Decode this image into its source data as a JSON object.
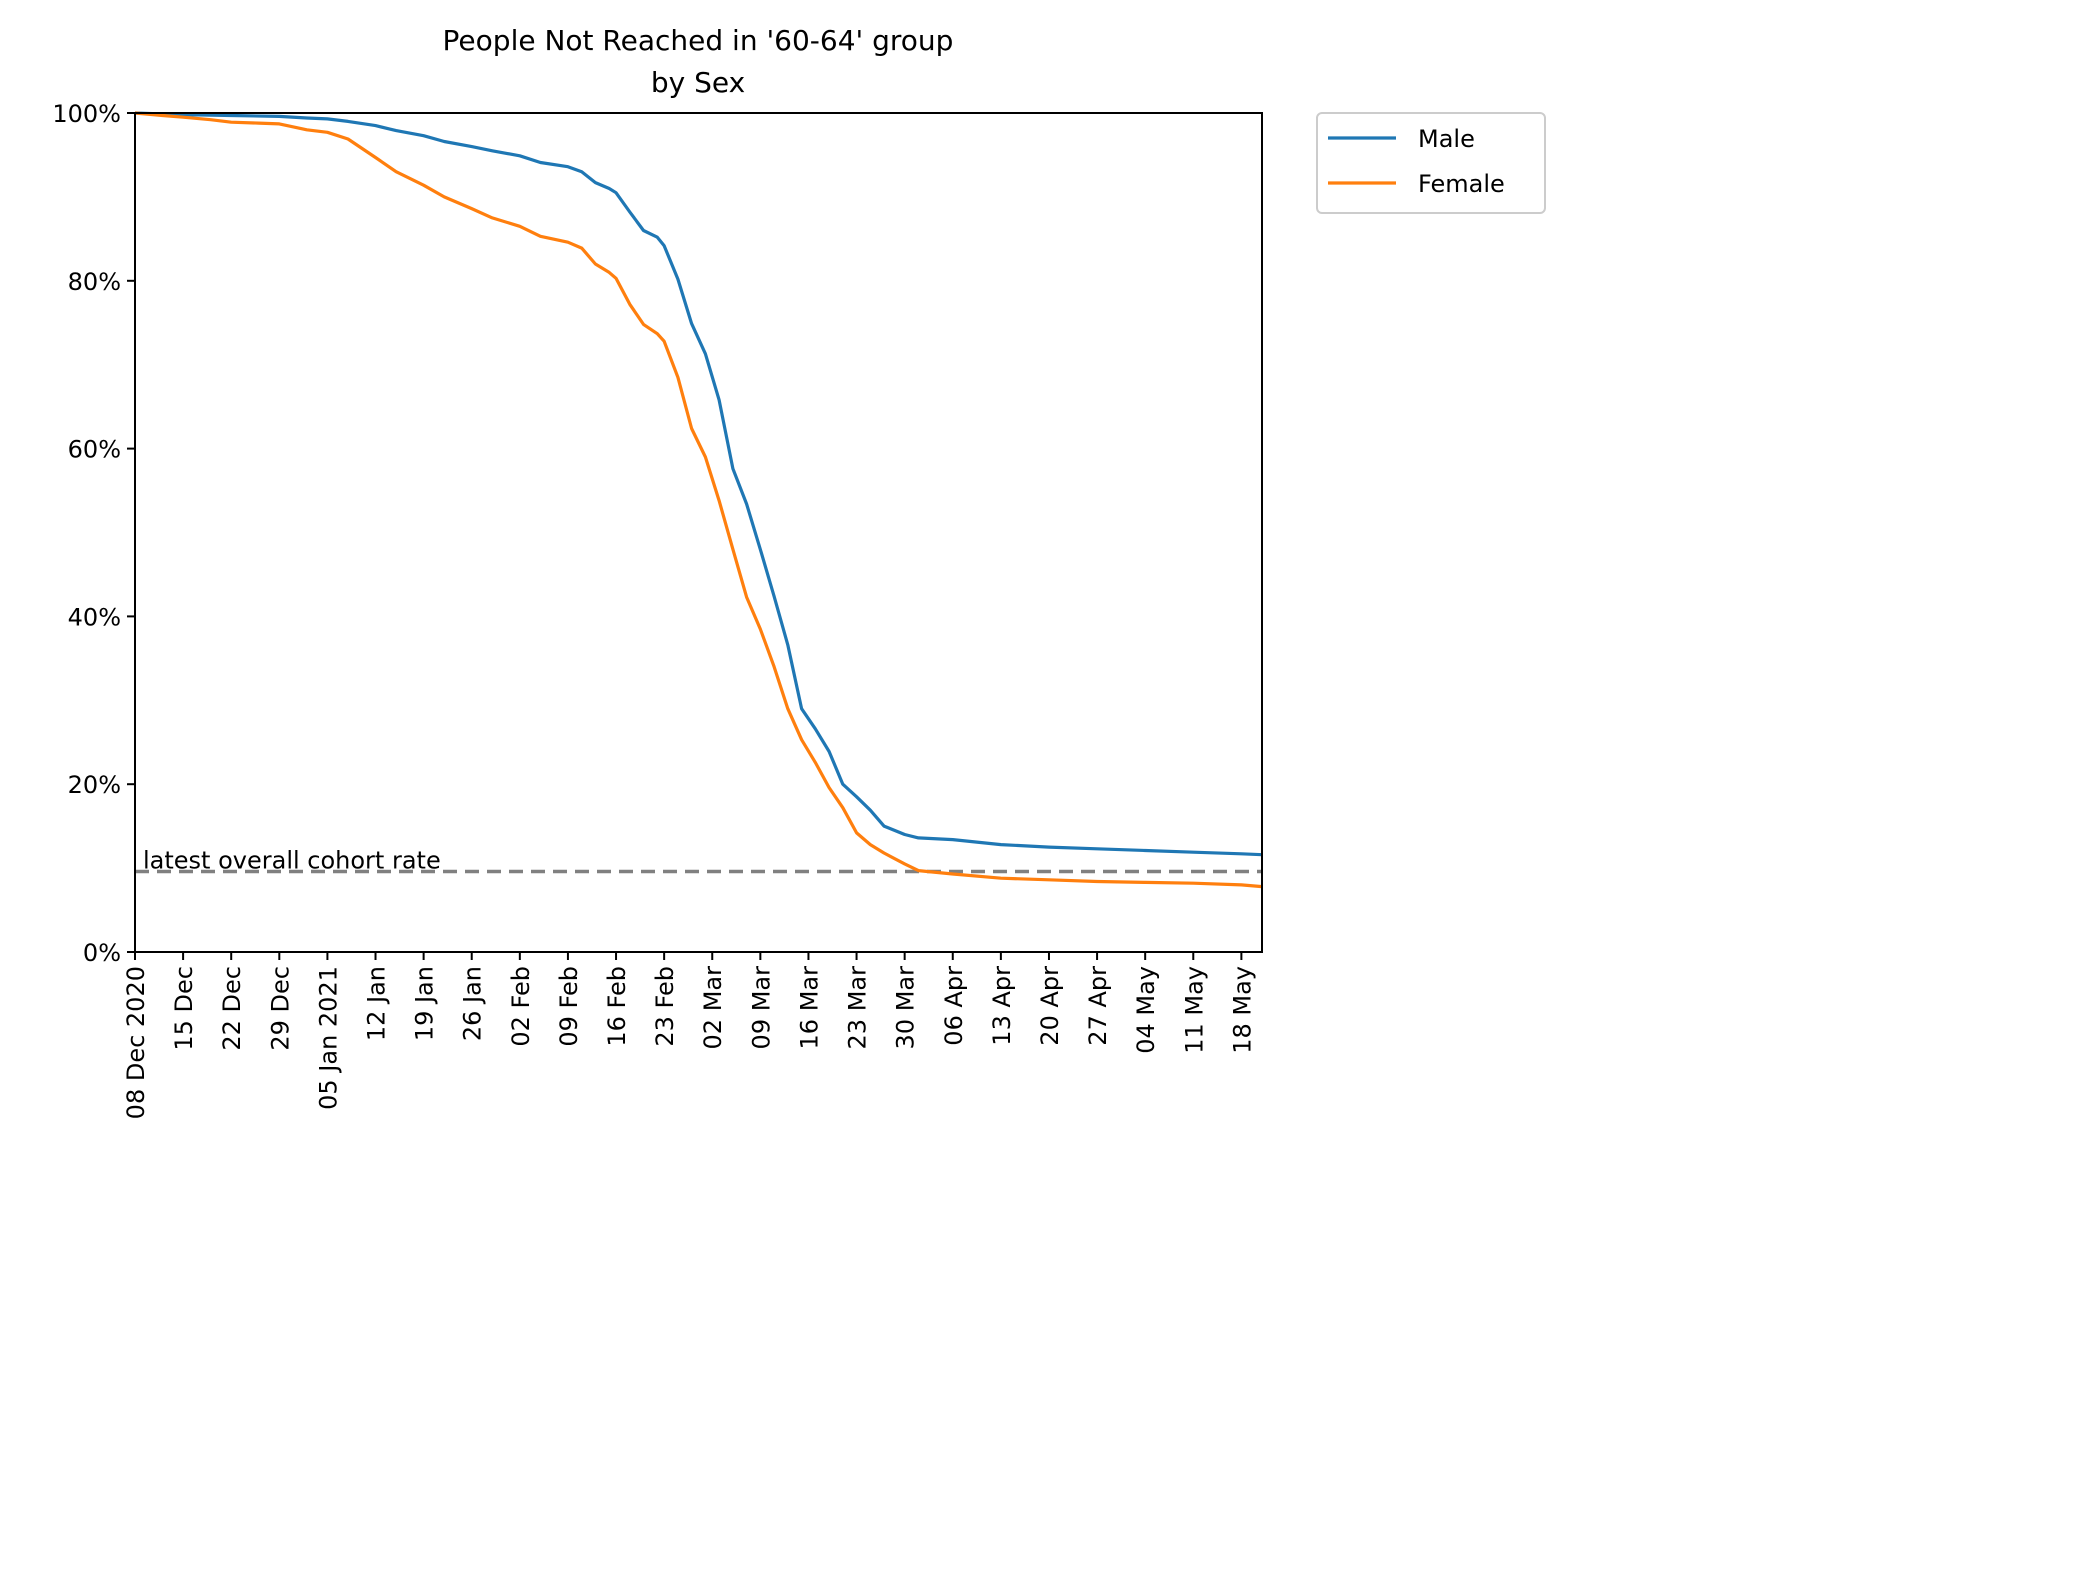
{
  "chart_data": {
    "type": "line",
    "title": "People Not Reached in '60-64' group",
    "subtitle": "by Sex",
    "xlabel": "",
    "ylabel": "",
    "ylim": [
      0,
      100
    ],
    "y_unit": "%",
    "xlim": [
      "2020-12-08",
      "2021-05-21"
    ],
    "grid": false,
    "legend_position": "outside-top-right",
    "x_ticks": [
      "08 Dec 2020",
      "15 Dec",
      "22 Dec",
      "29 Dec",
      "05 Jan 2021",
      "12 Jan",
      "19 Jan",
      "26 Jan",
      "02 Feb",
      "09 Feb",
      "16 Feb",
      "23 Feb",
      "02 Mar",
      "09 Mar",
      "16 Mar",
      "23 Mar",
      "30 Mar",
      "06 Apr",
      "13 Apr",
      "20 Apr",
      "27 Apr",
      "04 May",
      "11 May",
      "18 May"
    ],
    "y_ticks": [
      "0%",
      "20%",
      "40%",
      "60%",
      "80%",
      "100%"
    ],
    "reference_line": {
      "label": "latest overall cohort rate",
      "value": 9.6,
      "color": "#808080",
      "style": "dashed"
    },
    "series": [
      {
        "name": "Male",
        "color": "#1f77b4",
        "x": [
          "2020-12-08",
          "2020-12-15",
          "2020-12-22",
          "2020-12-29",
          "2021-01-02",
          "2021-01-05",
          "2021-01-08",
          "2021-01-12",
          "2021-01-15",
          "2021-01-19",
          "2021-01-22",
          "2021-01-26",
          "2021-01-29",
          "2021-02-02",
          "2021-02-05",
          "2021-02-09",
          "2021-02-11",
          "2021-02-13",
          "2021-02-15",
          "2021-02-16",
          "2021-02-18",
          "2021-02-20",
          "2021-02-22",
          "2021-02-23",
          "2021-02-25",
          "2021-02-27",
          "2021-03-01",
          "2021-03-03",
          "2021-03-05",
          "2021-03-07",
          "2021-03-09",
          "2021-03-11",
          "2021-03-13",
          "2021-03-15",
          "2021-03-17",
          "2021-03-19",
          "2021-03-21",
          "2021-03-23",
          "2021-03-25",
          "2021-03-27",
          "2021-03-30",
          "2021-04-01",
          "2021-04-06",
          "2021-04-13",
          "2021-04-20",
          "2021-04-27",
          "2021-05-04",
          "2021-05-11",
          "2021-05-18",
          "2021-05-21"
        ],
        "y": [
          100,
          99.8,
          99.7,
          99.6,
          99.4,
          99.3,
          99.0,
          98.5,
          97.9,
          97.3,
          96.6,
          96.0,
          95.5,
          94.9,
          94.1,
          93.6,
          93.0,
          91.7,
          91.0,
          90.5,
          88.2,
          86.0,
          85.2,
          84.2,
          80.2,
          74.9,
          71.3,
          65.8,
          57.6,
          53.4,
          48.0,
          42.4,
          36.6,
          29.0,
          26.6,
          23.9,
          20.0,
          18.5,
          16.9,
          15.0,
          14.0,
          13.6,
          13.4,
          12.8,
          12.5,
          12.3,
          12.1,
          11.9,
          11.7,
          11.6
        ]
      },
      {
        "name": "Female",
        "color": "#ff7f0e",
        "x": [
          "2020-12-08",
          "2020-12-12",
          "2020-12-15",
          "2020-12-19",
          "2020-12-22",
          "2020-12-26",
          "2020-12-29",
          "2021-01-02",
          "2021-01-05",
          "2021-01-08",
          "2021-01-12",
          "2021-01-15",
          "2021-01-19",
          "2021-01-22",
          "2021-01-26",
          "2021-01-29",
          "2021-02-02",
          "2021-02-05",
          "2021-02-09",
          "2021-02-11",
          "2021-02-13",
          "2021-02-15",
          "2021-02-16",
          "2021-02-18",
          "2021-02-20",
          "2021-02-22",
          "2021-02-23",
          "2021-02-25",
          "2021-02-27",
          "2021-03-01",
          "2021-03-03",
          "2021-03-05",
          "2021-03-07",
          "2021-03-09",
          "2021-03-11",
          "2021-03-13",
          "2021-03-15",
          "2021-03-17",
          "2021-03-19",
          "2021-03-21",
          "2021-03-23",
          "2021-03-25",
          "2021-03-27",
          "2021-03-30",
          "2021-04-01",
          "2021-04-06",
          "2021-04-13",
          "2021-04-20",
          "2021-04-27",
          "2021-05-04",
          "2021-05-11",
          "2021-05-18",
          "2021-05-21"
        ],
        "y": [
          100,
          99.7,
          99.5,
          99.2,
          98.9,
          98.8,
          98.7,
          98.0,
          97.7,
          96.9,
          94.7,
          93.0,
          91.4,
          90.0,
          88.6,
          87.5,
          86.5,
          85.3,
          84.6,
          83.9,
          82.0,
          81.0,
          80.3,
          77.2,
          74.8,
          73.7,
          72.8,
          68.5,
          62.4,
          59.0,
          53.8,
          48.0,
          42.3,
          38.5,
          34.0,
          29.0,
          25.3,
          22.6,
          19.6,
          17.2,
          14.2,
          12.8,
          11.8,
          10.5,
          9.7,
          9.3,
          8.8,
          8.6,
          8.4,
          8.3,
          8.2,
          8.0,
          7.8
        ]
      }
    ]
  }
}
